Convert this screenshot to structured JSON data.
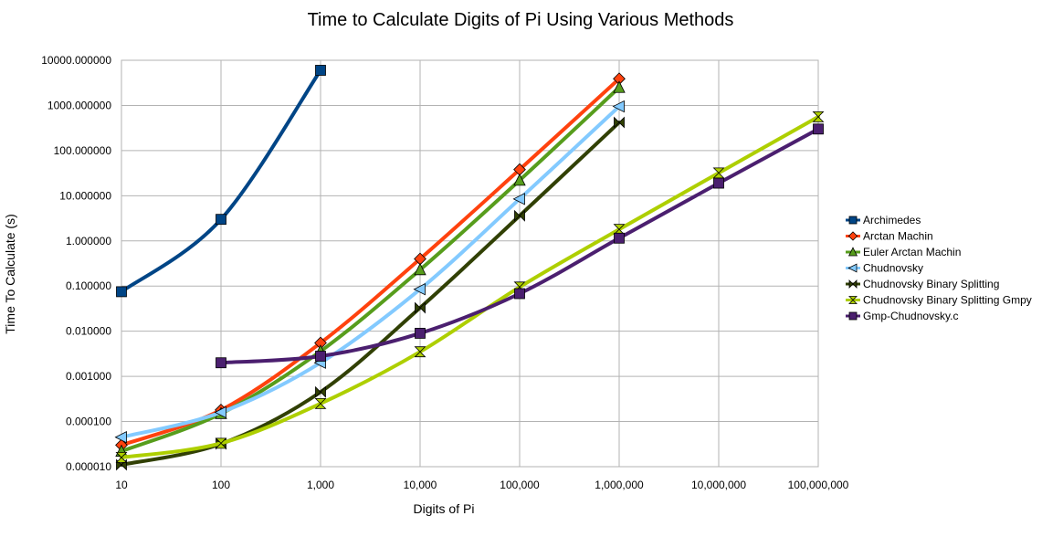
{
  "chart_data": {
    "type": "line",
    "title": "Time to Calculate Digits of Pi Using Various Methods",
    "xlabel": "Digits of Pi",
    "ylabel": "Time To Calculate (s)",
    "x_scale": "log",
    "y_scale": "log",
    "xlim": [
      10,
      100000000
    ],
    "ylim": [
      1e-05,
      10000
    ],
    "x_ticks": [
      10,
      100,
      1000,
      10000,
      100000,
      1000000,
      10000000,
      100000000
    ],
    "x_tick_labels": [
      "10",
      "100",
      "1,000",
      "10,000",
      "100,000",
      "1,000,000",
      "10,000,000",
      "100,000,000"
    ],
    "y_ticks": [
      1e-05,
      0.0001,
      0.001,
      0.01,
      0.1,
      1,
      10,
      100,
      1000,
      10000
    ],
    "y_tick_labels": [
      "0.000010",
      "0.000100",
      "0.001000",
      "0.010000",
      "0.100000",
      "1.000000",
      "10.000000",
      "100.000000",
      "1000.000000",
      "10000.000000"
    ],
    "grid": true,
    "legend_position": "right",
    "series": [
      {
        "name": "Archimedes",
        "color": "#004586",
        "marker": "square",
        "x": [
          10,
          100,
          1000
        ],
        "y": [
          0.075,
          3.0,
          6000
        ]
      },
      {
        "name": "Arctan Machin",
        "color": "#ff420e",
        "marker": "diamond",
        "x": [
          10,
          100,
          1000,
          10000,
          100000,
          1000000
        ],
        "y": [
          3e-05,
          0.00018,
          0.0055,
          0.4,
          38,
          3900
        ]
      },
      {
        "name": "Euler Arctan Machin",
        "color": "#579d1c",
        "marker": "triangle-up",
        "x": [
          10,
          100,
          1000,
          10000,
          100000,
          1000000
        ],
        "y": [
          2.2e-05,
          0.00015,
          0.0036,
          0.23,
          22,
          2500
        ]
      },
      {
        "name": "Chudnovsky",
        "color": "#83caff",
        "marker": "triangle-left",
        "x": [
          10,
          100,
          1000,
          10000,
          100000,
          1000000
        ],
        "y": [
          4.5e-05,
          0.00016,
          0.002,
          0.085,
          8.5,
          950
        ]
      },
      {
        "name": "Chudnovsky Binary Splitting",
        "color": "#314004",
        "marker": "bowtie",
        "x": [
          10,
          100,
          1000,
          10000,
          100000,
          1000000
        ],
        "y": [
          1.1e-05,
          3.2e-05,
          0.00045,
          0.033,
          3.6,
          420
        ]
      },
      {
        "name": "Chudnovsky Binary Splitting Gmpy",
        "color": "#aecf00",
        "marker": "hourglass",
        "x": [
          10,
          100,
          1000,
          10000,
          100000,
          1000000,
          10000000,
          100000000
        ],
        "y": [
          1.6e-05,
          3.3e-05,
          0.00025,
          0.0035,
          0.095,
          1.8,
          32,
          560
        ]
      },
      {
        "name": "Gmp-Chudnovsky.c",
        "color": "#4b1f6f",
        "marker": "square",
        "x": [
          100,
          1000,
          10000,
          100000,
          1000000,
          10000000,
          100000000
        ],
        "y": [
          0.002,
          0.0028,
          0.009,
          0.068,
          1.15,
          19,
          300
        ]
      }
    ]
  }
}
